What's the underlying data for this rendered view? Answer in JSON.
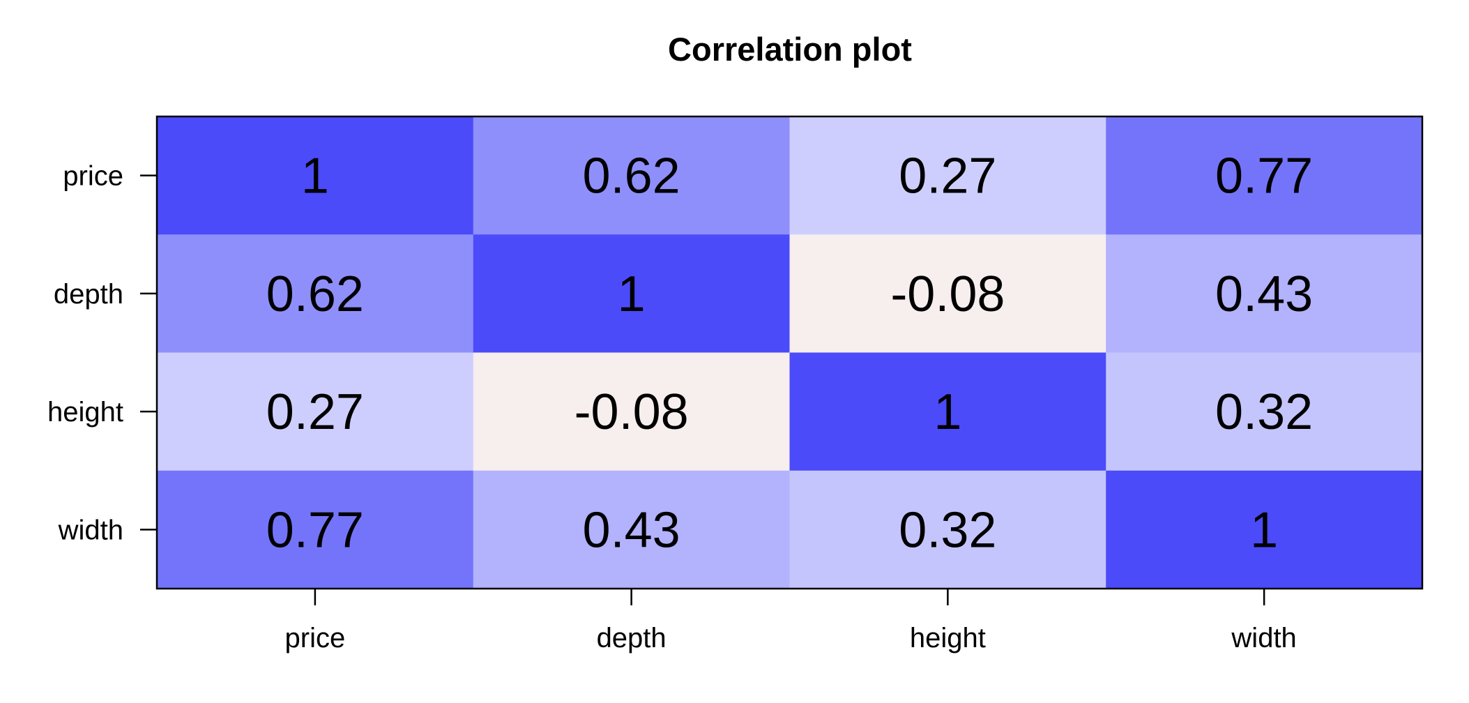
{
  "chart_data": {
    "type": "heatmap",
    "title": "Correlation plot",
    "xlabel": "",
    "ylabel": "",
    "x_categories": [
      "price",
      "depth",
      "height",
      "width"
    ],
    "y_categories": [
      "price",
      "depth",
      "height",
      "width"
    ],
    "values": [
      [
        1,
        0.62,
        0.27,
        0.77
      ],
      [
        0.62,
        1,
        -0.08,
        0.43
      ],
      [
        0.27,
        -0.08,
        1,
        0.32
      ],
      [
        0.77,
        0.43,
        0.32,
        1
      ]
    ],
    "value_labels": [
      [
        "1",
        "0.62",
        "0.27",
        "0.77"
      ],
      [
        "0.62",
        "1",
        "-0.08",
        "0.43"
      ],
      [
        "0.27",
        "-0.08",
        "1",
        "0.32"
      ],
      [
        "0.77",
        "0.43",
        "0.32",
        "1"
      ]
    ],
    "colors": {
      "positive_max": "#4b4bfa",
      "neutral": "#f7eeee",
      "border": "#000000"
    },
    "grid": false,
    "legend": "none"
  }
}
